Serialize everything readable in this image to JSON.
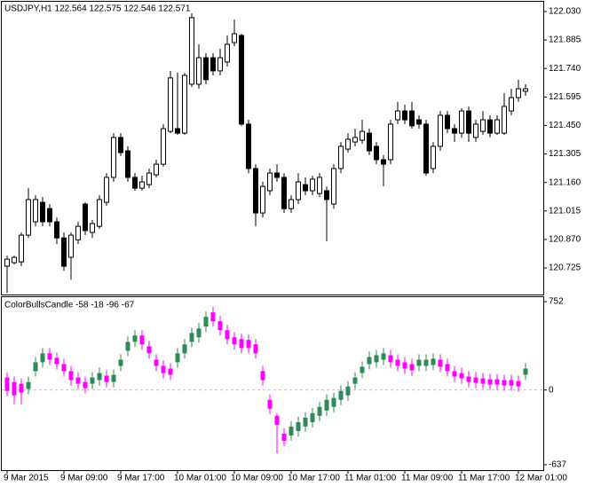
{
  "chart_data": [
    {
      "type": "candlestick",
      "title": "USDJPY,H1  122.564 122.575 122.546 122.571",
      "up_color": "#ffffff",
      "down_color": "#000000",
      "outline_color": "#000000",
      "ylim": [
        120.59,
        122.084
      ],
      "yticks": [
        {
          "value": 122.03,
          "label": "122.030"
        },
        121.885,
        {
          "value": 121.74,
          "label": "121.740"
        },
        121.595,
        {
          "value": 121.45,
          "label": "121.450"
        },
        121.305,
        {
          "value": 121.16,
          "label": "121.160"
        },
        121.015,
        {
          "value": 120.87,
          "label": "120.870"
        },
        120.725
      ],
      "open": [
        120.734,
        120.752,
        120.756,
        120.892,
        120.96,
        121.059,
        121.027,
        120.96,
        120.878,
        120.779,
        120.868,
        121.05,
        120.906,
        120.937,
        121.059,
        121.186,
        121.389,
        121.321,
        121.186,
        121.131,
        121.149,
        121.199,
        121.253,
        121.42,
        121.434,
        121.411,
        121.66,
        121.66,
        121.795,
        121.795,
        121.728,
        121.773,
        121.872,
        121.908,
        121.457,
        121.231,
        121.005,
        121.118,
        121.208,
        121.186,
        121.027,
        121.073,
        121.149,
        121.118,
        121.104,
        121.118,
        121.05,
        121.231,
        121.33,
        121.366,
        121.375,
        121.411,
        121.344,
        121.276,
        121.276,
        121.479,
        121.524,
        121.524,
        121.479,
        121.457,
        121.231,
        121.344,
        121.502,
        121.434,
        121.411,
        121.524,
        121.389,
        121.42,
        121.479,
        121.411,
        121.411,
        121.524,
        121.592,
        121.624
      ],
      "high": [
        120.788,
        120.788,
        120.906,
        121.131,
        121.095,
        121.086,
        121.05,
        120.982,
        120.906,
        120.906,
        120.96,
        121.059,
        120.969,
        121.095,
        121.208,
        121.411,
        121.411,
        121.344,
        121.208,
        121.195,
        121.231,
        121.276,
        121.457,
        121.728,
        121.719,
        121.719,
        122.021,
        121.863,
        121.818,
        121.818,
        121.841,
        121.908,
        121.99,
        121.917,
        121.479,
        121.253,
        121.163,
        121.231,
        121.253,
        121.208,
        121.095,
        121.208,
        121.186,
        121.195,
        121.208,
        121.14,
        121.253,
        121.366,
        121.411,
        121.434,
        121.479,
        121.434,
        121.366,
        121.299,
        121.479,
        121.57,
        121.556,
        121.57,
        121.502,
        121.479,
        121.366,
        121.524,
        121.524,
        121.457,
        121.538,
        121.547,
        121.479,
        121.524,
        121.502,
        121.502,
        121.615,
        121.637,
        121.683,
        121.66
      ],
      "low": [
        120.598,
        120.743,
        120.734,
        120.878,
        120.937,
        120.937,
        120.937,
        120.847,
        120.711,
        120.666,
        120.847,
        120.892,
        120.878,
        120.924,
        121.041,
        121.163,
        121.294,
        121.163,
        121.118,
        121.118,
        121.131,
        121.186,
        121.24,
        121.411,
        121.402,
        121.402,
        121.646,
        121.637,
        121.66,
        121.705,
        121.705,
        121.75,
        121.854,
        121.448,
        121.208,
        120.937,
        120.982,
        121.095,
        121.163,
        121.005,
        121.005,
        121.05,
        121.095,
        121.095,
        121.086,
        120.86,
        121.027,
        121.208,
        121.312,
        121.344,
        121.357,
        121.299,
        121.253,
        121.14,
        121.253,
        121.457,
        121.457,
        121.434,
        121.434,
        121.195,
        121.208,
        121.321,
        121.411,
        121.366,
        121.389,
        121.366,
        121.366,
        121.402,
        121.389,
        121.402,
        121.402,
        121.502,
        121.57,
        121.601
      ],
      "close": [
        120.77,
        120.779,
        120.892,
        121.073,
        121.073,
        120.96,
        120.96,
        120.878,
        120.734,
        120.892,
        120.937,
        120.915,
        120.951,
        121.073,
        121.186,
        121.389,
        121.312,
        121.186,
        121.131,
        121.163,
        121.208,
        121.253,
        121.434,
        121.692,
        121.411,
        121.705,
        121.999,
        121.795,
        121.683,
        121.728,
        121.795,
        121.863,
        121.917,
        121.457,
        121.231,
        121.005,
        121.14,
        121.208,
        121.186,
        121.027,
        121.073,
        121.163,
        121.118,
        121.177,
        121.186,
        121.073,
        121.231,
        121.344,
        121.38,
        121.389,
        121.42,
        121.321,
        121.276,
        121.253,
        121.457,
        121.524,
        121.479,
        121.448,
        121.457,
        121.208,
        121.344,
        121.502,
        121.434,
        121.411,
        121.524,
        121.411,
        121.457,
        121.479,
        121.411,
        121.479,
        121.547,
        121.592,
        121.637,
        121.637
      ]
    },
    {
      "type": "candlestick",
      "title": "ColorBullsCandle -58 -18 -96 -67",
      "up_color": "#2e8b57",
      "down_color": "#ff00ff",
      "ylim": [
        -683,
        798
      ],
      "yticks": [
        752,
        0,
        -637
      ],
      "levels": [
        0
      ],
      "categories": [
        "9 Mar 2015",
        null,
        null,
        null,
        null,
        null,
        null,
        null,
        "9 Mar 09:00",
        null,
        null,
        null,
        null,
        null,
        null,
        null,
        "9 Mar 17:00",
        null,
        null,
        null,
        null,
        null,
        null,
        null,
        "10 Mar 01:00",
        null,
        null,
        null,
        null,
        null,
        null,
        null,
        "10 Mar 09:00",
        null,
        null,
        null,
        null,
        null,
        null,
        null,
        "10 Mar 17:00",
        null,
        null,
        null,
        null,
        null,
        null,
        null,
        "11 Mar 01:00",
        null,
        null,
        null,
        null,
        null,
        null,
        null,
        "11 Mar 09:00",
        null,
        null,
        null,
        null,
        null,
        null,
        null,
        "11 Mar 17:00",
        null,
        null,
        null,
        null,
        null,
        null,
        null,
        "12 Mar 01:00",
        null
      ],
      "open": [
        106,
        68,
        53,
        8,
        160,
        236,
        312,
        274,
        220,
        160,
        106,
        68,
        53,
        84,
        122,
        68,
        205,
        334,
        410,
        464,
        372,
        258,
        205,
        182,
        236,
        312,
        410,
        448,
        540,
        661,
        585,
        509,
        448,
        433,
        426,
        388,
        160,
        -84,
        -220,
        -372,
        -388,
        -350,
        -312,
        -274,
        -220,
        -175,
        -144,
        -84,
        -46,
        53,
        144,
        220,
        236,
        258,
        296,
        258,
        236,
        220,
        205,
        205,
        213,
        258,
        220,
        160,
        144,
        114,
        106,
        99,
        91,
        91,
        84,
        84,
        76,
        129
      ],
      "high": [
        152,
        114,
        99,
        114,
        281,
        357,
        357,
        319,
        266,
        205,
        152,
        114,
        152,
        190,
        167,
        175,
        304,
        456,
        509,
        509,
        418,
        304,
        251,
        228,
        357,
        433,
        532,
        570,
        669,
        707,
        631,
        555,
        494,
        479,
        471,
        433,
        205,
        -38,
        -198,
        -327,
        -266,
        -228,
        -190,
        -152,
        -99,
        -38,
        -23,
        38,
        76,
        152,
        243,
        327,
        342,
        357,
        342,
        304,
        281,
        266,
        304,
        304,
        312,
        304,
        266,
        205,
        190,
        160,
        152,
        144,
        137,
        137,
        129,
        129,
        122,
        228
      ],
      "low": [
        -53,
        -122,
        -122,
        -38,
        114,
        190,
        213,
        175,
        114,
        38,
        8,
        -30,
        8,
        38,
        23,
        23,
        160,
        289,
        365,
        342,
        266,
        160,
        99,
        84,
        190,
        266,
        365,
        403,
        494,
        540,
        464,
        388,
        342,
        312,
        312,
        266,
        38,
        -205,
        -540,
        -479,
        -433,
        -395,
        -357,
        -319,
        -266,
        -220,
        -190,
        -129,
        -91,
        8,
        99,
        175,
        190,
        213,
        190,
        160,
        137,
        122,
        160,
        160,
        167,
        152,
        114,
        68,
        53,
        23,
        15,
        8,
        0,
        0,
        -8,
        -8,
        -15,
        84
      ],
      "close": [
        -8,
        -46,
        -23,
        68,
        236,
        312,
        258,
        220,
        160,
        84,
        53,
        15,
        106,
        144,
        68,
        129,
        258,
        410,
        464,
        388,
        312,
        205,
        144,
        129,
        312,
        388,
        486,
        524,
        623,
        585,
        509,
        433,
        388,
        357,
        357,
        312,
        84,
        -160,
        -296,
        -433,
        -312,
        -274,
        -236,
        -198,
        -144,
        -84,
        -68,
        -8,
        30,
        106,
        198,
        281,
        296,
        312,
        236,
        205,
        182,
        167,
        258,
        258,
        266,
        198,
        160,
        114,
        99,
        68,
        61,
        53,
        46,
        46,
        38,
        38,
        30,
        182
      ]
    }
  ]
}
